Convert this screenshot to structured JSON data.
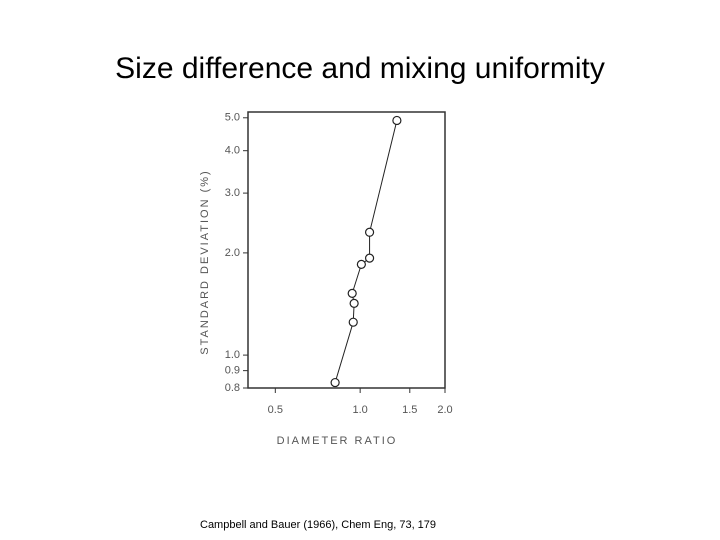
{
  "chart_data": {
    "type": "scatter",
    "title": "Size difference and mixing uniformity",
    "caption": "Campbell and Bauer (1966), Chem Eng, 73, 179",
    "xlabel": "DIAMETER RATIO",
    "ylabel": "STANDARD DEVIATION (%)",
    "x": [
      0.815,
      0.945,
      0.952,
      0.937,
      1.01,
      1.08,
      1.08,
      1.35
    ],
    "values": [
      0.83,
      1.25,
      1.42,
      1.52,
      1.85,
      1.93,
      2.3,
      4.91
    ],
    "color": "#222222",
    "connect": true,
    "xscale": "log",
    "yscale": "log",
    "xlim": [
      0.4,
      2.0
    ],
    "ylim": [
      0.8,
      5.2
    ],
    "xticks": [
      0.5,
      {
        "value": 1.0,
        "label": "1.0"
      },
      1.5,
      {
        "value": 2.0,
        "label": "2.0"
      }
    ],
    "yticks": [
      0.8,
      0.9,
      {
        "value": 1.0,
        "label": "1.0"
      },
      {
        "value": 2.0,
        "label": "2.0"
      },
      {
        "value": 3.0,
        "label": "3.0"
      },
      {
        "value": 4.0,
        "label": "4.0"
      },
      {
        "value": 5.0,
        "label": "5.0"
      }
    ]
  }
}
